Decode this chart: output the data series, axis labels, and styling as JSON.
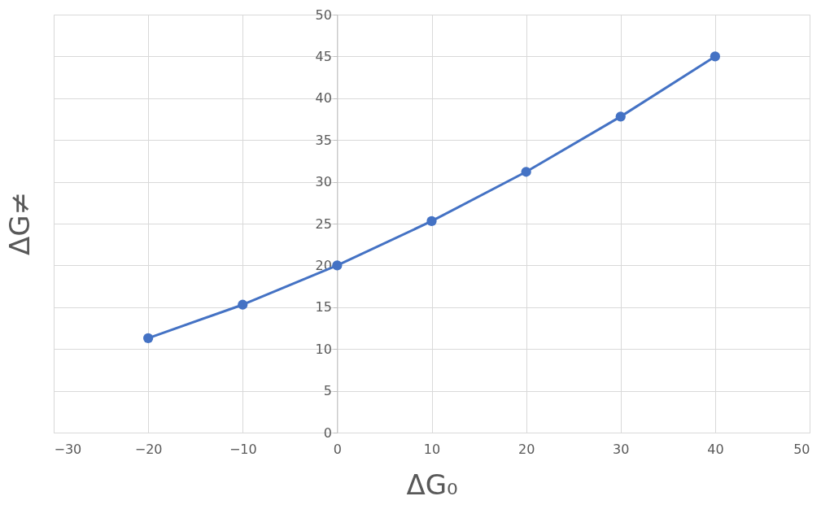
{
  "chart_data": {
    "type": "line",
    "xlabel": "ΔG₀",
    "ylabel": "ΔG≠",
    "x": [
      -20,
      -10,
      0,
      10,
      20,
      30,
      40
    ],
    "series": [
      {
        "color": "#4472c4",
        "values": [
          11.3,
          15.3,
          20,
          25.3,
          31.2,
          37.8,
          45
        ]
      }
    ],
    "xlim": [
      -30,
      50
    ],
    "xticks": [
      -30,
      -20,
      -10,
      0,
      10,
      20,
      30,
      40,
      50
    ],
    "ylim": [
      0,
      50
    ],
    "yticks": [
      0,
      5,
      10,
      15,
      20,
      25,
      30,
      35,
      40,
      45,
      50
    ],
    "grid": true,
    "marker": "circle",
    "line_style": "solid"
  }
}
